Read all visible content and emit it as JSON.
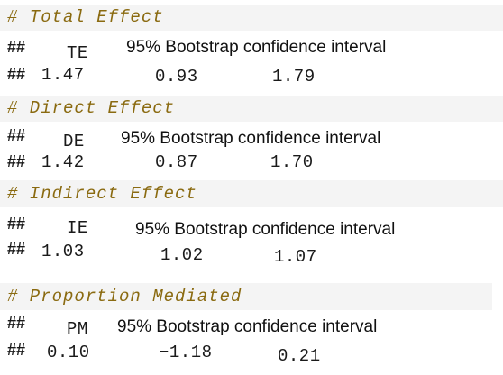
{
  "sections": [
    {
      "comment": "# Total Effect",
      "label": "TE",
      "ci_label": "95% Bootstrap confidence interval",
      "prefix": "##",
      "estimate": "1.47",
      "lower": "0.93",
      "upper": "1.79"
    },
    {
      "comment": "# Direct Effect",
      "label": "DE",
      "ci_label": "95% Bootstrap confidence interval",
      "prefix": "##",
      "estimate": "1.42",
      "lower": "0.87",
      "upper": "1.70"
    },
    {
      "comment": "# Indirect Effect",
      "label": "IE",
      "ci_label": "95% Bootstrap confidence interval",
      "prefix": "##",
      "estimate": "1.03",
      "lower": "1.02",
      "upper": "1.07"
    },
    {
      "comment": "# Proportion Mediated",
      "label": "PM",
      "ci_label": "95% Bootstrap confidence interval",
      "prefix": "##",
      "estimate": "0.10",
      "lower": "−1.18",
      "upper": "0.21"
    }
  ],
  "colors": {
    "comment": "#8a6a10",
    "band": "#f4f4f4",
    "text": "#1a1a1a"
  }
}
